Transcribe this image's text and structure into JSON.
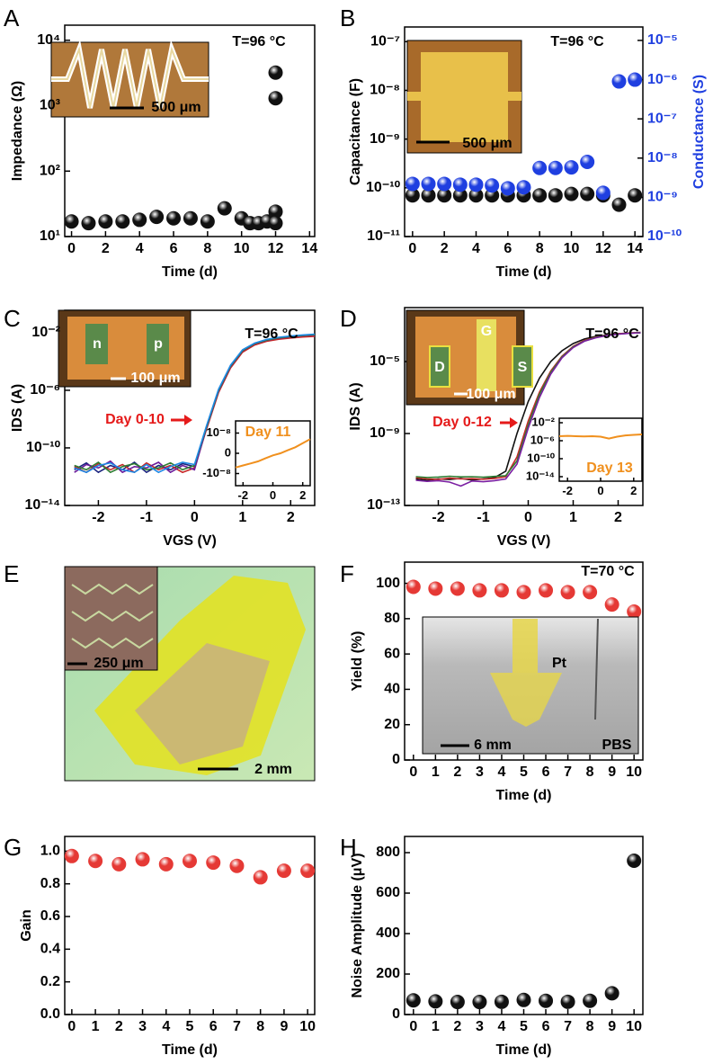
{
  "chart_data": [
    {
      "type": "scatter",
      "panel": "A",
      "annotations": [
        "T=96 °C",
        "500 μm"
      ],
      "xlabel": "Time (d)",
      "ylabel": "Impedance (Ω)",
      "yscale": "log",
      "x": [
        0,
        1,
        2,
        3,
        4,
        5,
        6,
        7,
        8,
        9,
        10,
        10.5,
        11,
        11.5,
        12,
        12,
        12,
        12
      ],
      "values": [
        17,
        16,
        17,
        17,
        18,
        20,
        19,
        19,
        17,
        27,
        19,
        16,
        16,
        17,
        24,
        16,
        1300,
        3200
      ],
      "color": "#111111",
      "xlim": [
        -0.4,
        14.3
      ],
      "xticks": [
        0,
        2,
        4,
        6,
        8,
        10,
        12,
        14
      ],
      "ylim": [
        10,
        17000
      ],
      "yticks": [
        {
          "value": 10,
          "label": "10¹"
        },
        {
          "value": 100,
          "label": "10²"
        },
        {
          "value": 1000,
          "label": "10³"
        },
        {
          "value": 10000,
          "label": "10⁴"
        }
      ]
    },
    {
      "type": "scatter",
      "panel": "B",
      "annotations": [
        "T=96 °C",
        "500 μm"
      ],
      "xlabel": "Time (d)",
      "ylabel": "Capacitance (F)",
      "y2label": "Conductance (S)",
      "yscale": "log",
      "y2scale": "log",
      "x": [
        0,
        1,
        2,
        3,
        4,
        5,
        6,
        7,
        8,
        9,
        10,
        11,
        12,
        13,
        14
      ],
      "series": [
        {
          "color": "#111111",
          "values": [
            7e-11,
            7e-11,
            7e-11,
            7e-11,
            7e-11,
            7e-11,
            7e-11,
            7e-11,
            7e-11,
            7e-11,
            7.5e-11,
            7.5e-11,
            7e-11,
            4.5e-11,
            7e-11
          ]
        },
        {
          "color": "#1f3fe0",
          "axis": "y2",
          "values": [
            2.2e-09,
            2.2e-09,
            2.2e-09,
            2.1e-09,
            2.1e-09,
            2e-09,
            1.7e-09,
            1.8e-09,
            5.6e-09,
            5.6e-09,
            5.8e-09,
            8e-09,
            1.3e-09,
            9e-07,
            1e-06
          ]
        }
      ],
      "xlim": [
        -0.5,
        14.5
      ],
      "xticks": [
        0,
        2,
        4,
        6,
        8,
        10,
        12,
        14
      ],
      "ylim": [
        1e-11,
        2e-07
      ],
      "yticks": [
        {
          "value": 1e-11,
          "label": "10⁻¹¹"
        },
        {
          "value": 1e-10,
          "label": "10⁻¹⁰"
        },
        {
          "value": 1e-09,
          "label": "10⁻⁹"
        },
        {
          "value": 1e-08,
          "label": "10⁻⁸"
        },
        {
          "value": 1e-07,
          "label": "10⁻⁷"
        }
      ],
      "y2lim": [
        1e-10,
        2.2e-05
      ],
      "y2ticks": [
        {
          "value": 1e-10,
          "label": "10⁻¹⁰"
        },
        {
          "value": 1e-09,
          "label": "10⁻⁹"
        },
        {
          "value": 1e-08,
          "label": "10⁻⁸"
        },
        {
          "value": 1e-07,
          "label": "10⁻⁷"
        },
        {
          "value": 1e-06,
          "label": "10⁻⁶"
        },
        {
          "value": 1e-05,
          "label": "10⁻⁵"
        }
      ]
    },
    {
      "type": "line",
      "panel": "C",
      "annotations": [
        "T=96 °C",
        "100 μm",
        "n",
        "p",
        "Day 0-10"
      ],
      "xlabel": "VGS (V)",
      "ylabel": "IDS (A)",
      "yscale": "log",
      "x": [
        -2.5,
        -2.25,
        -2,
        -1.75,
        -1.5,
        -1.25,
        -1,
        -0.75,
        -0.5,
        -0.25,
        0,
        0.25,
        0.5,
        0.75,
        1,
        1.25,
        1.5,
        1.75,
        2,
        2.25,
        2.5
      ],
      "series": [
        {
          "color": "#1a237e",
          "values": [
            3e-12,
            9e-12,
            2e-12,
            6e-12,
            3e-12,
            1e-11,
            2e-12,
            6e-12,
            3e-12,
            8e-12,
            5e-12,
            3e-09,
            1e-06,
            5e-05,
            0.0006,
            0.0018,
            0.0032,
            0.0045,
            0.0055,
            0.0065,
            0.0075
          ]
        },
        {
          "color": "#c62828",
          "values": [
            5e-12,
            2e-12,
            8e-12,
            3e-12,
            7e-12,
            2e-12,
            9e-12,
            3e-12,
            6e-12,
            2e-12,
            4e-12,
            2e-09,
            7e-07,
            3.5e-05,
            0.00045,
            0.0014,
            0.0025,
            0.0035,
            0.0043,
            0.005,
            0.0056
          ]
        },
        {
          "color": "#6a1b9a",
          "values": [
            2e-12,
            7e-12,
            4e-12,
            1.2e-11,
            2e-12,
            5e-12,
            4e-12,
            1e-11,
            2e-12,
            6e-12,
            3e-12,
            2.5e-09,
            9e-07,
            4.5e-05,
            0.00055,
            0.0017,
            0.003,
            0.0042,
            0.0052,
            0.0062,
            0.007
          ]
        },
        {
          "color": "#2e7d32",
          "values": [
            6e-12,
            3e-12,
            1e-11,
            2e-12,
            5e-12,
            8e-12,
            3e-12,
            4e-12,
            9e-12,
            3e-12,
            6e-12,
            2.8e-09,
            1e-06,
            4.8e-05,
            0.00058,
            0.00175,
            0.0031,
            0.0044,
            0.0054,
            0.0064,
            0.0073
          ]
        },
        {
          "color": "#1e88e5",
          "values": [
            4e-12,
            2e-12,
            6e-12,
            9e-12,
            3e-12,
            2e-12,
            7e-12,
            2e-12,
            5e-12,
            1e-11,
            7e-12,
            3.5e-09,
            1.2e-06,
            5.5e-05,
            0.00065,
            0.0019,
            0.0034,
            0.0048,
            0.0059,
            0.007,
            0.008
          ]
        }
      ],
      "xlim": [
        -2.7,
        2.5
      ],
      "xticks": [
        -2,
        -1,
        0,
        1,
        2
      ],
      "ylim": [
        1e-14,
        0.36
      ],
      "yticks": [
        {
          "value": 1e-14,
          "label": "10⁻¹⁴"
        },
        {
          "value": 1e-10,
          "label": "10⁻¹⁰"
        },
        {
          "value": 1e-06,
          "label": "10⁻⁶"
        },
        {
          "value": 0.01,
          "label": "10⁻²"
        }
      ],
      "inset": {
        "type": "line",
        "x": [
          -2.5,
          -2,
          -1.5,
          -1,
          -0.5,
          0,
          0.5,
          1,
          1.5,
          2,
          2.5
        ],
        "series": [
          {
            "name": "Day 11",
            "color": "#f0901e",
            "values": [
              -7e-09,
              -6e-09,
              -5e-09,
              -4e-09,
              -2.5e-09,
              -1e-09,
              0,
              1.5e-09,
              3e-09,
              5e-09,
              7e-09
            ]
          }
        ],
        "xlim": [
          -2.5,
          2.5
        ],
        "xticks": [
          -2,
          0,
          2
        ],
        "ylim": [
          -1.6e-08,
          1.6e-08
        ],
        "yticks": [
          {
            "value": 1e-08,
            "label": "10⁻⁸"
          },
          0,
          {
            "value": -1e-08,
            "label": "-10⁻⁸"
          }
        ]
      }
    },
    {
      "type": "line",
      "panel": "D",
      "annotations": [
        "T=96 °C",
        "G",
        "D",
        "S",
        "100 μm",
        "Day 0-12"
      ],
      "xlabel": "VGS (V)",
      "ylabel": "IDS (A)",
      "yscale": "log",
      "x": [
        -2.5,
        -2.25,
        -2,
        -1.75,
        -1.5,
        -1.25,
        -1,
        -0.75,
        -0.5,
        -0.25,
        0,
        0.25,
        0.5,
        0.75,
        1,
        1.25,
        1.5,
        1.75,
        2,
        2.25,
        2.5
      ],
      "series": [
        {
          "color": "#111111",
          "values": [
            3e-12,
            2.5e-12,
            3e-12,
            2.8e-12,
            3.2e-12,
            2.6e-12,
            3e-12,
            3.5e-12,
            8e-12,
            1e-09,
            6e-08,
            1.2e-06,
            1e-05,
            4e-05,
            0.0001,
            0.00018,
            0.00025,
            0.0003,
            0.00035,
            0.00038,
            0.0004
          ]
        },
        {
          "color": "#c62828",
          "values": [
            3.5e-12,
            3e-12,
            2.8e-12,
            3.3e-12,
            3e-12,
            3.1e-12,
            2.9e-12,
            3.2e-12,
            4e-12,
            5e-11,
            5e-09,
            2e-07,
            3e-06,
            2e-05,
            7e-05,
            0.00015,
            0.00023,
            0.0003,
            0.00035,
            0.00039,
            0.00042
          ]
        },
        {
          "color": "#2e7d32",
          "values": [
            4e-12,
            3.6e-12,
            3.8e-12,
            4.2e-12,
            3.9e-12,
            4e-12,
            3.7e-12,
            4.1e-12,
            4.5e-12,
            3e-11,
            3e-09,
            1.5e-07,
            2.5e-06,
            1.8e-05,
            6.5e-05,
            0.00014,
            0.00022,
            0.00029,
            0.00034,
            0.00038,
            0.00041
          ]
        },
        {
          "color": "#7b1fa2",
          "values": [
            2.5e-12,
            2.2e-12,
            2.4e-12,
            2e-12,
            1.2e-12,
            2.3e-12,
            2.1e-12,
            2.4e-12,
            3e-12,
            2e-11,
            2e-09,
            1e-07,
            2e-06,
            1.6e-05,
            6e-05,
            0.000135,
            0.00021,
            0.00028,
            0.00033,
            0.00037,
            0.0004
          ]
        }
      ],
      "xlim": [
        -2.75,
        2.55
      ],
      "xticks": [
        -2,
        -1,
        0,
        1,
        2
      ],
      "ylim": [
        1e-13,
        0.01
      ],
      "yticks": [
        {
          "value": 1e-13,
          "label": "10⁻¹³"
        },
        {
          "value": 1e-09,
          "label": "10⁻⁹"
        },
        {
          "value": 1e-05,
          "label": "10⁻⁵"
        }
      ],
      "inset": {
        "type": "line",
        "yscale": "log",
        "x": [
          -2.5,
          -2,
          -1.5,
          -1,
          -0.5,
          0,
          0.5,
          1,
          1.5,
          2,
          2.5
        ],
        "series": [
          {
            "name": "Day 13",
            "color": "#f0901e",
            "values": [
              1e-05,
              1.2e-05,
              1e-05,
              9e-06,
              1e-05,
              8e-06,
              3e-06,
              8e-06,
              1.5e-05,
              2e-05,
              2.5e-05
            ]
          }
        ],
        "xlim": [
          -2.5,
          2.5
        ],
        "xticks": [
          -2,
          0,
          2
        ],
        "ylim": [
          1e-15,
          0.1
        ],
        "yticks": [
          {
            "value": 1e-14,
            "label": "10⁻¹⁴"
          },
          {
            "value": 1e-10,
            "label": "10⁻¹⁰"
          },
          {
            "value": 1e-06,
            "label": "10⁻⁶"
          },
          {
            "value": 0.01,
            "label": "10⁻²"
          }
        ]
      }
    },
    {
      "type": "image",
      "panel": "E",
      "annotations": [
        "250 μm",
        "2 mm"
      ]
    },
    {
      "type": "scatter",
      "panel": "F",
      "annotations": [
        "T=70 °C",
        "Pt",
        "6 mm",
        "PBS"
      ],
      "xlabel": "Time (d)",
      "ylabel": "Yield (%)",
      "color": "#e53935",
      "x": [
        0,
        1,
        2,
        3,
        4,
        5,
        6,
        7,
        8,
        9,
        10
      ],
      "values": [
        98,
        97,
        97,
        96,
        96,
        95,
        96,
        95,
        95,
        88,
        84
      ],
      "xlim": [
        -0.4,
        10.4
      ],
      "xticks": [
        0,
        1,
        2,
        3,
        4,
        5,
        6,
        7,
        8,
        9,
        10
      ],
      "ylim": [
        0,
        112
      ],
      "yticks": [
        0,
        20,
        40,
        60,
        80,
        100
      ]
    },
    {
      "type": "scatter",
      "panel": "G",
      "xlabel": "Time (d)",
      "ylabel": "Gain",
      "color": "#e53935",
      "x": [
        0,
        1,
        2,
        3,
        4,
        5,
        6,
        7,
        8,
        9,
        10
      ],
      "values": [
        0.97,
        0.94,
        0.92,
        0.95,
        0.92,
        0.94,
        0.93,
        0.91,
        0.84,
        0.88,
        0.88
      ],
      "xlim": [
        -0.3,
        10.3
      ],
      "xticks": [
        0,
        1,
        2,
        3,
        4,
        5,
        6,
        7,
        8,
        9,
        10
      ],
      "ylim": [
        0,
        1.09
      ],
      "yticks": [
        {
          "value": 0,
          "label": "0.0"
        },
        0.2,
        0.4,
        0.6,
        0.8,
        {
          "value": 1,
          "label": "1.0"
        }
      ]
    },
    {
      "type": "scatter",
      "panel": "H",
      "xlabel": "Time (d)",
      "ylabel": "Noise Amplitude (μV)",
      "color": "#111111",
      "x": [
        0,
        1,
        2,
        3,
        4,
        5,
        6,
        7,
        8,
        9,
        10
      ],
      "values": [
        70,
        65,
        62,
        62,
        63,
        72,
        68,
        63,
        68,
        105,
        760
      ],
      "xlim": [
        -0.4,
        10.4
      ],
      "xticks": [
        0,
        1,
        2,
        3,
        4,
        5,
        6,
        7,
        8,
        9,
        10
      ],
      "ylim": [
        0,
        880
      ],
      "yticks": [
        0,
        200,
        400,
        600,
        800
      ]
    }
  ]
}
